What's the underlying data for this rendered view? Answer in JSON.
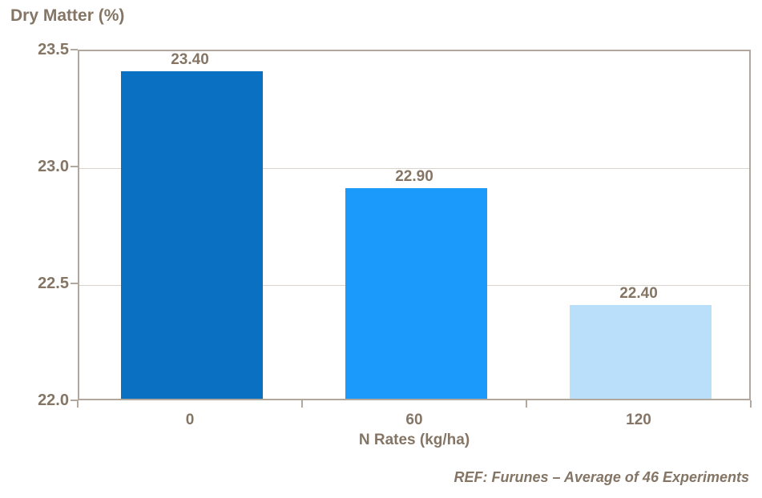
{
  "title": "Dry Matter (%)",
  "footer_note": "REF: Furunes – Average of 46 Experiments",
  "colors": {
    "text": "#847565",
    "gridline": "#D9D3CC",
    "axis_border": "#B2A79C",
    "background": "#FFFFFF",
    "bar_colors": [
      "#0A71C2",
      "#1B9AFC",
      "#B9DFFB"
    ]
  },
  "chart_data": {
    "type": "bar",
    "title": "Dry Matter (%)",
    "xlabel": "N Rates (kg/ha)",
    "ylabel": "Dry Matter (%)",
    "categories": [
      "0",
      "60",
      "120"
    ],
    "values": [
      23.4,
      22.9,
      22.4
    ],
    "value_labels": [
      "23.40",
      "22.90",
      "22.40"
    ],
    "ylim": [
      22.0,
      23.5
    ],
    "yticks": [
      23.5,
      23.0,
      22.5,
      22.0
    ],
    "ytick_labels": [
      "23.5",
      "23.0",
      "22.5",
      "22.0"
    ],
    "grid": true,
    "legend": "none",
    "annotation": "REF: Furunes – Average of 46 Experiments"
  }
}
